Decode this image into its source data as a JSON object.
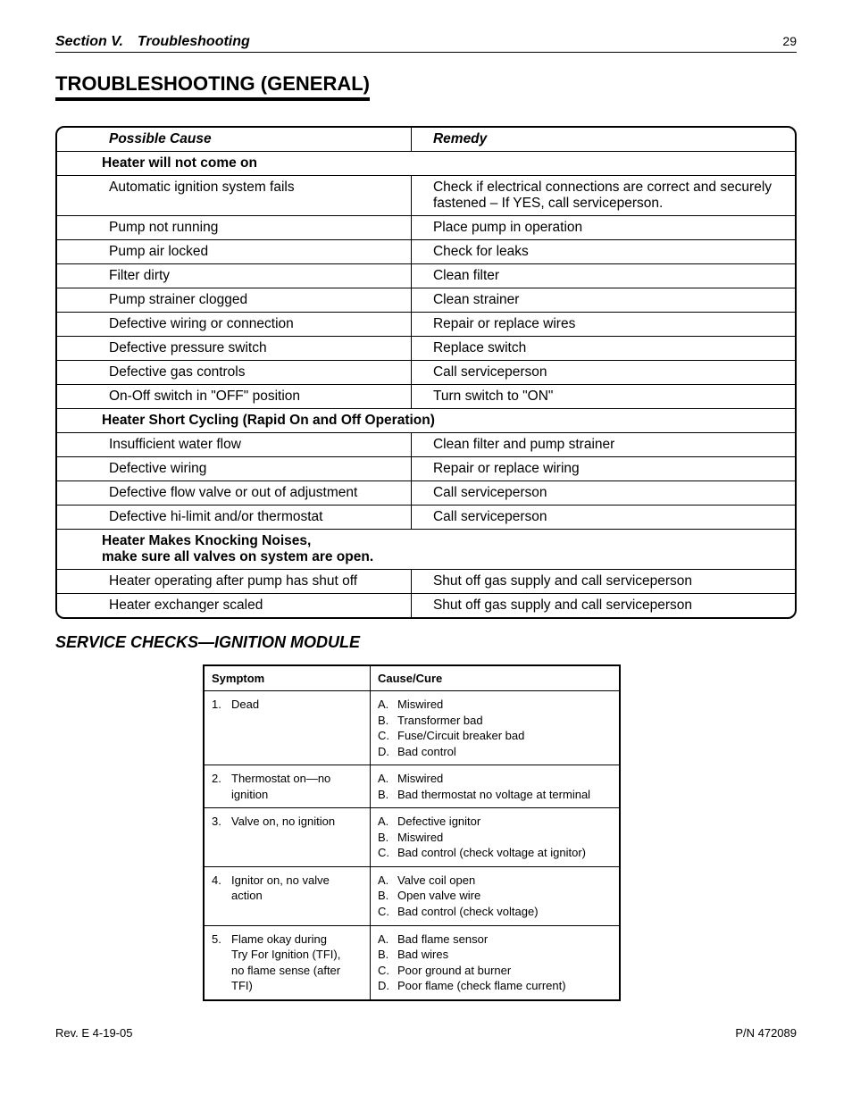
{
  "header": {
    "section_label": "Section V. Troubleshooting",
    "page_number": "29"
  },
  "main_title": "TROUBLESHOOTING (GENERAL)",
  "table1": {
    "col_headers": [
      "Possible Cause",
      "Remedy"
    ],
    "sections": [
      {
        "title": "Heater will not come on",
        "rows": [
          {
            "cause": "Automatic ignition system fails",
            "remedy": "Check if electrical connections are correct  and securely fastened – If YES, call serviceperson."
          },
          {
            "cause": "Pump not running",
            "remedy": "Place pump in operation"
          },
          {
            "cause": "Pump air locked",
            "remedy": "Check for leaks"
          },
          {
            "cause": "Filter dirty",
            "remedy": "Clean filter"
          },
          {
            "cause": "Pump strainer clogged",
            "remedy": "Clean strainer"
          },
          {
            "cause": "Defective wiring or connection",
            "remedy": "Repair or replace wires"
          },
          {
            "cause": "Defective pressure switch",
            "remedy": "Replace switch"
          },
          {
            "cause": "Defective gas controls",
            "remedy": "Call serviceperson"
          },
          {
            "cause": "On-Off switch in \"OFF\" position",
            "remedy": "Turn switch to \"ON\""
          }
        ]
      },
      {
        "title": "Heater Short Cycling (Rapid On and Off Operation)",
        "rows": [
          {
            "cause": "Insufficient water flow",
            "remedy": "Clean filter and pump strainer"
          },
          {
            "cause": "Defective wiring",
            "remedy": "Repair or replace wiring"
          },
          {
            "cause": "Defective flow valve or out of adjustment",
            "remedy": "Call serviceperson"
          },
          {
            "cause": "Defective hi-limit and/or thermostat",
            "remedy": "Call serviceperson"
          }
        ]
      },
      {
        "title": "Heater Makes Knocking Noises,\nmake sure all valves on system are open.",
        "rows": [
          {
            "cause": "Heater operating after pump has shut off",
            "remedy": "Shut off gas supply and call serviceperson"
          },
          {
            "cause": "Heater exchanger scaled",
            "remedy": "Shut off gas supply and call serviceperson"
          }
        ]
      }
    ]
  },
  "sub_title": "SERVICE CHECKS—IGNITION MODULE",
  "table2": {
    "col_headers": [
      "Symptom",
      "Cause/Cure"
    ],
    "rows": [
      {
        "symptom_num": "1.",
        "symptom_lines": [
          "Dead"
        ],
        "cure_items": [
          {
            "mk": "A.",
            "txt": "Miswired"
          },
          {
            "mk": "B.",
            "txt": "Transformer bad"
          },
          {
            "mk": "C.",
            "txt": "Fuse/Circuit breaker bad"
          },
          {
            "mk": "D.",
            "txt": "Bad control"
          }
        ]
      },
      {
        "symptom_num": "2.",
        "symptom_lines": [
          "Thermostat on—no ignition"
        ],
        "cure_items": [
          {
            "mk": "A.",
            "txt": "Miswired"
          },
          {
            "mk": "B.",
            "txt": "Bad thermostat no voltage at terminal"
          }
        ]
      },
      {
        "symptom_num": "3.",
        "symptom_lines": [
          "Valve on, no ignition"
        ],
        "cure_items": [
          {
            "mk": "A.",
            "txt": "Defective ignitor"
          },
          {
            "mk": "B.",
            "txt": "Miswired"
          },
          {
            "mk": "C.",
            "txt": "Bad control (check voltage at ignitor)"
          }
        ]
      },
      {
        "symptom_num": "4.",
        "symptom_lines": [
          "Ignitor on, no valve action"
        ],
        "cure_items": [
          {
            "mk": "A.",
            "txt": "Valve coil open"
          },
          {
            "mk": "B.",
            "txt": "Open valve wire"
          },
          {
            "mk": "C.",
            "txt": "Bad control (check voltage)"
          }
        ]
      },
      {
        "symptom_num": "5.",
        "symptom_lines": [
          "Flame okay during",
          "Try For Ignition (TFI),",
          "no flame sense (after TFI)"
        ],
        "cure_items": [
          {
            "mk": "A.",
            "txt": "Bad flame sensor"
          },
          {
            "mk": "B.",
            "txt": "Bad wires"
          },
          {
            "mk": "C.",
            "txt": "Poor ground at burner"
          },
          {
            "mk": "D.",
            "txt": "Poor flame (check flame current)"
          }
        ]
      }
    ]
  },
  "footer": {
    "rev": "Rev. E  4-19-05",
    "pn": "P/N  472089"
  }
}
